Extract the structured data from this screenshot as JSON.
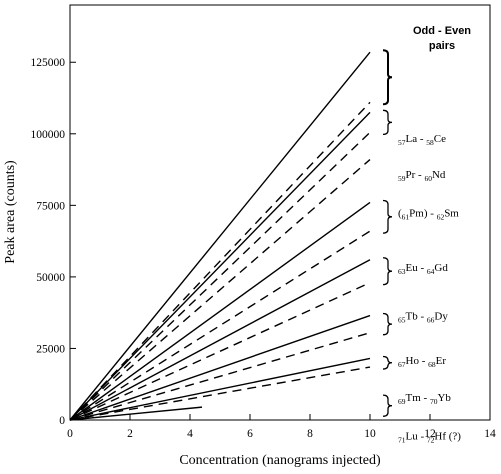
{
  "chart_data": {
    "type": "line",
    "xlabel": "Concentration (nanograms injected)",
    "ylabel": "Peak area (counts)",
    "xlim": [
      0,
      14
    ],
    "ylim": [
      0,
      145000
    ],
    "x_ticks": [
      "0",
      "2",
      "4",
      "6",
      "8",
      "10",
      "12",
      "14"
    ],
    "y_ticks": [
      "0",
      "25000",
      "50000",
      "75000",
      "100000",
      "125000"
    ],
    "legend_title": [
      "Odd - Even",
      "pairs"
    ],
    "series": [
      {
        "name": "La",
        "element": "La",
        "z": "57",
        "style": "solid",
        "x": [
          0,
          10
        ],
        "y": [
          0,
          128500
        ]
      },
      {
        "name": "Ce",
        "element": "Ce",
        "z": "58",
        "style": "dashed",
        "x": [
          0,
          10
        ],
        "y": [
          0,
          111000
        ]
      },
      {
        "name": "Pr",
        "element": "Pr",
        "z": "59",
        "style": "solid",
        "x": [
          0,
          10
        ],
        "y": [
          0,
          107500
        ]
      },
      {
        "name": "Nd",
        "element": "Nd",
        "z": "60",
        "style": "dashed",
        "x": [
          0,
          10
        ],
        "y": [
          0,
          100500
        ]
      },
      {
        "name": "Sm",
        "element": "Sm",
        "z": "62",
        "style": "dashed",
        "x": [
          0,
          10
        ],
        "y": [
          0,
          91000
        ]
      },
      {
        "name": "Eu",
        "element": "Eu",
        "z": "63",
        "style": "solid",
        "x": [
          0,
          10
        ],
        "y": [
          0,
          76000
        ]
      },
      {
        "name": "Gd",
        "element": "Gd",
        "z": "64",
        "style": "dashed",
        "x": [
          0,
          10
        ],
        "y": [
          0,
          66000
        ]
      },
      {
        "name": "Tb",
        "element": "Tb",
        "z": "65",
        "style": "solid",
        "x": [
          0,
          10
        ],
        "y": [
          0,
          56000
        ]
      },
      {
        "name": "Dy",
        "element": "Dy",
        "z": "66",
        "style": "dashed",
        "x": [
          0,
          10
        ],
        "y": [
          0,
          48000
        ]
      },
      {
        "name": "Ho",
        "element": "Ho",
        "z": "67",
        "style": "solid",
        "x": [
          0,
          10
        ],
        "y": [
          0,
          36500
        ]
      },
      {
        "name": "Er",
        "element": "Er",
        "z": "68",
        "style": "dashed",
        "x": [
          0,
          10
        ],
        "y": [
          0,
          30500
        ]
      },
      {
        "name": "Tm",
        "element": "Tm",
        "z": "69",
        "style": "solid",
        "x": [
          0,
          10
        ],
        "y": [
          0,
          21500
        ]
      },
      {
        "name": "Yb",
        "element": "Yb",
        "z": "70",
        "style": "dashed",
        "x": [
          0,
          10
        ],
        "y": [
          0,
          18500
        ]
      },
      {
        "name": "Lu",
        "element": "Lu",
        "z": "71",
        "style": "solid",
        "x": [
          0,
          4.4
        ],
        "y": [
          0,
          4500
        ]
      }
    ],
    "pairs": [
      {
        "parts": [
          [
            "",
            "57",
            "La"
          ],
          [
            " - ",
            "58",
            "Ce"
          ]
        ],
        "y_low": 111000,
        "y_high": 128500,
        "label_y": 98500
      },
      {
        "parts": [
          [
            "",
            "59",
            "Pr"
          ],
          [
            " - ",
            "60",
            "Nd"
          ]
        ],
        "y_low": 100500,
        "y_high": 107500,
        "label_y": 86000
      },
      {
        "parts": [
          [
            "(",
            "61",
            "Pm)"
          ],
          [
            " - ",
            "62",
            "Sm"
          ]
        ],
        "y_low": null,
        "y_high": null,
        "label_y": 72500
      },
      {
        "parts": [
          [
            "",
            "63",
            "Eu"
          ],
          [
            " - ",
            "64",
            "Gd"
          ]
        ],
        "y_low": 66000,
        "y_high": 76000,
        "label_y": 53500
      },
      {
        "parts": [
          [
            "",
            "65",
            "Tb"
          ],
          [
            " - ",
            "66",
            "Dy"
          ]
        ],
        "y_low": 48000,
        "y_high": 56000,
        "label_y": 36500
      },
      {
        "parts": [
          [
            "",
            "67",
            "Ho"
          ],
          [
            " - ",
            "68",
            "Er"
          ]
        ],
        "y_low": 30500,
        "y_high": 36500,
        "label_y": 21000
      },
      {
        "parts": [
          [
            "",
            "69",
            "Tm"
          ],
          [
            " - ",
            "70",
            "Yb"
          ]
        ],
        "y_low": 18500,
        "y_high": 21500,
        "label_y": 8000
      },
      {
        "parts": [
          [
            "",
            "71",
            "Lu"
          ],
          [
            " - ",
            "72",
            "Hf (?)"
          ]
        ],
        "y_low": 2000,
        "y_high": 8000,
        "label_y": -5500
      }
    ]
  }
}
